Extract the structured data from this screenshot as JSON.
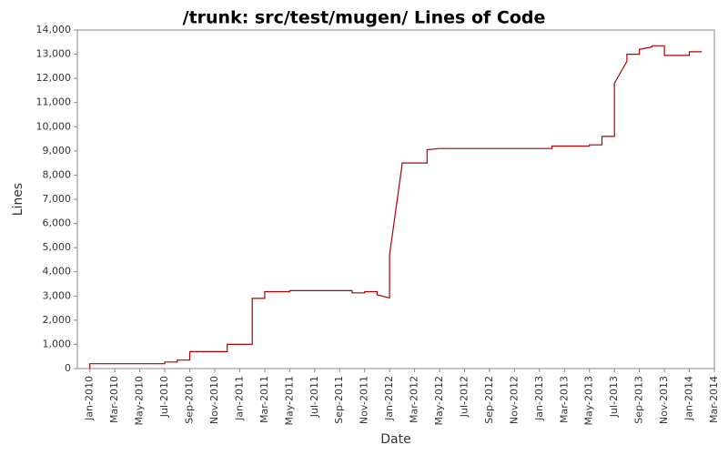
{
  "chart_data": {
    "type": "line",
    "title": "/trunk: src/test/mugen/ Lines of Code",
    "x_label": "Date",
    "y_label": "Lines",
    "x": [
      "2010-01",
      "2010-01",
      "2010-07",
      "2010-07",
      "2010-08",
      "2010-08",
      "2010-09",
      "2010-09",
      "2010-12",
      "2010-12",
      "2011-02",
      "2011-02",
      "2011-03",
      "2011-03",
      "2011-05",
      "2011-05",
      "2011-10",
      "2011-10",
      "2011-11",
      "2011-11",
      "2011-12",
      "2011-12",
      "2012-01",
      "2012-01",
      "2012-02",
      "2012-02",
      "2012-04",
      "2012-04",
      "2012-05",
      "2013-02",
      "2013-02",
      "2013-05",
      "2013-05",
      "2013-06",
      "2013-06",
      "2013-07",
      "2013-07",
      "2013-08",
      "2013-08",
      "2013-09",
      "2013-09",
      "2013-10",
      "2013-10",
      "2013-11",
      "2013-11",
      "2014-01",
      "2014-01",
      "2014-02"
    ],
    "series": [
      {
        "name": "Lines",
        "color": "#b00000",
        "values": [
          0,
          200,
          200,
          270,
          270,
          350,
          350,
          700,
          700,
          1000,
          1000,
          2900,
          2900,
          3180,
          3180,
          3220,
          3220,
          3130,
          3130,
          3180,
          3180,
          3050,
          2920,
          4700,
          8450,
          8500,
          8500,
          9050,
          9100,
          9100,
          9200,
          9200,
          9250,
          9250,
          9600,
          9600,
          11800,
          12700,
          13000,
          13000,
          13200,
          13300,
          13350,
          13350,
          12950,
          12950,
          13100,
          13100
        ]
      }
    ],
    "xlim": [
      "2009-12",
      "2014-03"
    ],
    "xticks": [
      {
        "value": "2010-01",
        "label": "Jan-2010"
      },
      {
        "value": "2010-03",
        "label": "Mar-2010"
      },
      {
        "value": "2010-05",
        "label": "May-2010"
      },
      {
        "value": "2010-07",
        "label": "Jul-2010"
      },
      {
        "value": "2010-09",
        "label": "Sep-2010"
      },
      {
        "value": "2010-11",
        "label": "Nov-2010"
      },
      {
        "value": "2011-01",
        "label": "Jan-2011"
      },
      {
        "value": "2011-03",
        "label": "Mar-2011"
      },
      {
        "value": "2011-05",
        "label": "May-2011"
      },
      {
        "value": "2011-07",
        "label": "Jul-2011"
      },
      {
        "value": "2011-09",
        "label": "Sep-2011"
      },
      {
        "value": "2011-11",
        "label": "Nov-2011"
      },
      {
        "value": "2012-01",
        "label": "Jan-2012"
      },
      {
        "value": "2012-03",
        "label": "Mar-2012"
      },
      {
        "value": "2012-05",
        "label": "May-2012"
      },
      {
        "value": "2012-07",
        "label": "Jul-2012"
      },
      {
        "value": "2012-09",
        "label": "Sep-2012"
      },
      {
        "value": "2012-11",
        "label": "Nov-2012"
      },
      {
        "value": "2013-01",
        "label": "Jan-2013"
      },
      {
        "value": "2013-03",
        "label": "Mar-2013"
      },
      {
        "value": "2013-05",
        "label": "May-2013"
      },
      {
        "value": "2013-07",
        "label": "Jul-2013"
      },
      {
        "value": "2013-09",
        "label": "Sep-2013"
      },
      {
        "value": "2013-11",
        "label": "Nov-2013"
      },
      {
        "value": "2014-01",
        "label": "Jan-2014"
      },
      {
        "value": "2014-03",
        "label": "Mar-2014"
      }
    ],
    "ylim": [
      0,
      14000
    ],
    "yticks": [
      0,
      {
        "value": 1000,
        "label": "1,000"
      },
      {
        "value": 2000,
        "label": "2,000"
      },
      {
        "value": 3000,
        "label": "3,000"
      },
      {
        "value": 4000,
        "label": "4,000"
      },
      {
        "value": 5000,
        "label": "5,000"
      },
      {
        "value": 6000,
        "label": "6,000"
      },
      {
        "value": 7000,
        "label": "7,000"
      },
      {
        "value": 8000,
        "label": "8,000"
      },
      {
        "value": 9000,
        "label": "9,000"
      },
      {
        "value": 10000,
        "label": "10,000"
      },
      {
        "value": 11000,
        "label": "11,000"
      },
      {
        "value": 12000,
        "label": "12,000"
      },
      {
        "value": 13000,
        "label": "13,000"
      },
      {
        "value": 14000,
        "label": "14,000"
      }
    ],
    "grid": false
  }
}
